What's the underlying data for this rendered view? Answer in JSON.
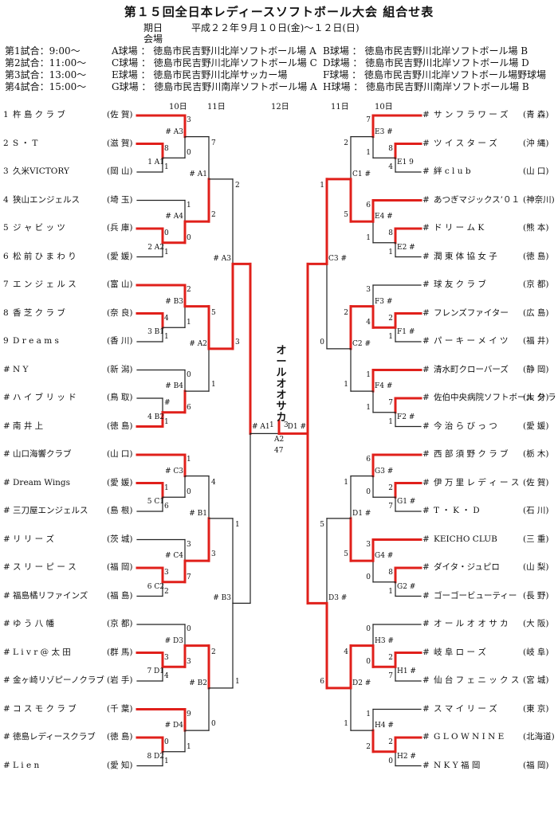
{
  "title": "第１５回全日本レディースソフトボール大会 組合せ表",
  "period_label": "期日",
  "period_value": "平成２２年９月１０日(金)～１２日(日)",
  "venue_label": "会場",
  "schedule": [
    {
      "time": "第1試合：9:00～",
      "left": "A球場 ： 徳島市民吉野川北岸ソフトボール場 A",
      "right": "B球場 ： 徳島市民吉野川北岸ソフトボール場 B"
    },
    {
      "time": "第2試合：11:00～",
      "left": "C球場 ： 徳島市民吉野川北岸ソフトボール場 C",
      "right": "D球場 ： 徳島市民吉野川北岸ソフトボール場 D"
    },
    {
      "time": "第3試合：13:00～",
      "left": "E球場 ： 徳島市民吉野川北岸サッカー場",
      "right": "F球場 ： 徳島市民吉野川北岸ソフトボール場野球場"
    },
    {
      "time": "第4試合：15:00～",
      "left": "G球場 ： 徳島市民吉野川南岸ソフトボール場 A",
      "right": "H球場 ： 徳島市民吉野川南岸ソフトボール場 B"
    }
  ],
  "days": {
    "l10": "10日",
    "l11": "11日",
    "c12": "12日",
    "r11": "11日",
    "r10": "10日"
  },
  "left_teams": [
    {
      "no": "1",
      "name": "杵 島 ク ラ ブ",
      "pref": "(佐 賀)"
    },
    {
      "no": "2",
      "name": "S ・ T",
      "pref": "(滋 賀)"
    },
    {
      "no": "3",
      "name": "久米VICTORY",
      "pref": "(岡 山)"
    },
    {
      "no": "4",
      "name": "狭山エンジェルス",
      "pref": "(埼 玉)"
    },
    {
      "no": "5",
      "name": "ジ ャ ビ ッ ツ",
      "pref": "(兵 庫)"
    },
    {
      "no": "6",
      "name": "松 前 ひ ま わ り",
      "pref": "(愛 媛)"
    },
    {
      "no": "7",
      "name": "エ ン ジ ェ ル ス",
      "pref": "(富 山)"
    },
    {
      "no": "8",
      "name": "香 芝 ク ラ ブ",
      "pref": "(奈 良)"
    },
    {
      "no": "9",
      "name": "D r e a m s",
      "pref": "(香 川)"
    },
    {
      "no": "#",
      "name": "N Y",
      "pref": "(新 潟)"
    },
    {
      "no": "#",
      "name": "ハ イ ブ リ ッ ド",
      "pref": "(鳥 取)"
    },
    {
      "no": "#",
      "name": "南 井 上",
      "pref": "(徳 島)"
    },
    {
      "no": "#",
      "name": "山口海響クラブ",
      "pref": "(山 口)"
    },
    {
      "no": "#",
      "name": "Dream Wings",
      "pref": "(愛 媛)"
    },
    {
      "no": "#",
      "name": "三刀屋エンジェルス",
      "pref": "(島 根)"
    },
    {
      "no": "#",
      "name": "リ リ ー ズ",
      "pref": "(茨 城)"
    },
    {
      "no": "#",
      "name": "ス リ ー ピ ー ス",
      "pref": "(福 岡)"
    },
    {
      "no": "#",
      "name": "福島橘リファインズ",
      "pref": "(福 島)"
    },
    {
      "no": "#",
      "name": "ゆ う 八 幡",
      "pref": "(京 都)"
    },
    {
      "no": "#",
      "name": "L i v r @ 太 田",
      "pref": "(群 馬)"
    },
    {
      "no": "#",
      "name": "金ヶ崎リゾピーノクラブ",
      "pref": "(岩 手)"
    },
    {
      "no": "#",
      "name": "コ ス モ ク ラ ブ",
      "pref": "(千 葉)"
    },
    {
      "no": "#",
      "name": "徳島レディースクラブ",
      "pref": "(徳 島)"
    },
    {
      "no": "#",
      "name": "L i e n",
      "pref": "(愛 知)"
    }
  ],
  "right_teams": [
    {
      "no": "#",
      "name": "サ ン フ ラ ワ ー ズ",
      "pref": "(青 森)"
    },
    {
      "no": "#",
      "name": "ツ イ ス タ ー ズ",
      "pref": "(沖 縄)"
    },
    {
      "no": "#",
      "name": "絆 c l u b",
      "pref": "(山 口)"
    },
    {
      "no": "#",
      "name": "あつぎマジックス’０１",
      "pref": "(神奈川)"
    },
    {
      "no": "#",
      "name": "ド リ ー ム K",
      "pref": "(熊 本)"
    },
    {
      "no": "#",
      "name": "潤 東 体 協 女 子",
      "pref": "(徳 島)"
    },
    {
      "no": "#",
      "name": "球 友 ク ラ ブ",
      "pref": "(京 都)"
    },
    {
      "no": "#",
      "name": "フレンズファイター",
      "pref": "(広 島)"
    },
    {
      "no": "#",
      "name": "パ ー キ ー メ イ ツ",
      "pref": "(福 井)"
    },
    {
      "no": "#",
      "name": "清水町クローバーズ",
      "pref": "(静 岡)"
    },
    {
      "no": "#",
      "name": "佐伯中央病院ソフトボール ク ラ ブ",
      "pref": "(大 分)"
    },
    {
      "no": "#",
      "name": "今 治 ら び っ つ",
      "pref": "(愛 媛)"
    },
    {
      "no": "#",
      "name": "西 部 須 野 ク ラ ブ",
      "pref": "(栃 木)"
    },
    {
      "no": "#",
      "name": "伊 万 里 レ デ ィ ー ス",
      "pref": "(佐 賀)"
    },
    {
      "no": "#",
      "name": "T ・ K ・ D",
      "pref": "(石 川)"
    },
    {
      "no": "#",
      "name": "KEICHO CLUB",
      "pref": "(三 重)"
    },
    {
      "no": "#",
      "name": "ダイタ・ジュピロ",
      "pref": "(山 梨)"
    },
    {
      "no": "#",
      "name": "ゴーゴービューティー",
      "pref": "(長 野)"
    },
    {
      "no": "#",
      "name": "オ ー ル オ オ サ カ",
      "pref": "(大 阪)"
    },
    {
      "no": "#",
      "name": "岐 阜 ロ ー ズ",
      "pref": "(岐 阜)"
    },
    {
      "no": "#",
      "name": "仙 台 フ ェ ニ ッ ク ス",
      "pref": "(宮 城)"
    },
    {
      "no": "#",
      "name": "ス マ イ リ ー ズ",
      "pref": "(東 京)"
    },
    {
      "no": "#",
      "name": "G L O W N I N E",
      "pref": "(北海道)"
    },
    {
      "no": "#",
      "name": "N K Y 福 岡",
      "pref": "(福 岡)"
    }
  ],
  "champion": "オールオオサカ",
  "final": {
    "code": "A2",
    "left_score": "1",
    "right_score": "3",
    "left_label": "# A1",
    "right_label": "D1 #",
    "extra": "47"
  },
  "left_groups": [
    {
      "r1": "# A3",
      "r1_a": "3",
      "r1_b": "0",
      "r0": "1 A1",
      "r0_a": "8",
      "r0_b": "1",
      "r0_c": "3",
      "w_top": true,
      "sf": "# A1"
    },
    {
      "r1": "# A4",
      "r1_a": "1",
      "r1_b": "0",
      "r0": "2 A2",
      "r0_a": "0",
      "r0_b": "1",
      "r0_c": "1",
      "w_top": false
    },
    {
      "r1": "# B3",
      "r1_a": "2",
      "r1_b": "1",
      "r0": "3 B1",
      "r0_a": "4",
      "r0_b": "1",
      "r0_c": "1",
      "w_top": true
    },
    {
      "r1": "# B4",
      "r1_a": "0",
      "r1_b": "6",
      "r0": "4 B2",
      "r0_a": "#",
      "r0_b": "1",
      "r0_c": "0",
      "w_top": false
    },
    {
      "r1": "# C3",
      "r1_a": "1",
      "r1_b": "0",
      "r0": "5 C1",
      "r0_a": "1",
      "r0_b": "6",
      "r0_c": "0",
      "w_top": true
    },
    {
      "r1": "# C4",
      "r1_a": "3",
      "r1_b": "7",
      "r0": "6 C2",
      "r0_a": "3",
      "r0_b": "2",
      "r0_c": "0",
      "w_top": false
    },
    {
      "r1": "# D3",
      "r1_a": "0",
      "r1_b": "3",
      "r0": "7 D1",
      "r0_a": "3",
      "r0_b": "4",
      "r0_c": "0",
      "w_top": false
    },
    {
      "r1": "# D4",
      "r1_a": "9",
      "r1_b": "1",
      "r0": "8 D2",
      "r0_a": "0",
      "r0_b": "1",
      "r0_c": "0",
      "w_top": true
    }
  ],
  "left_qf": [
    {
      "label": "# A1",
      "a": "7",
      "b": "2"
    },
    {
      "label": "# A2",
      "a": "5",
      "b": "1"
    },
    {
      "label": "# B1",
      "a": "4",
      "b": "3"
    },
    {
      "label": "# B2",
      "a": "2",
      "b": "0"
    }
  ],
  "left_sf": [
    {
      "label": "# A3",
      "a": "2",
      "b": "3"
    },
    {
      "label": "# B3",
      "a": "1",
      "b": "1"
    }
  ],
  "right_groups": [
    {
      "r1": "E3 #",
      "r1_a": "7",
      "r1_b": "1",
      "r0": "E1 9",
      "r0_a": "8",
      "r0_b": "4",
      "r0_c": "",
      "w_top": true
    },
    {
      "r1": "E4 #",
      "r1_a": "6",
      "r1_b": "1",
      "r0": "E2 #",
      "r0_a": "8",
      "r0_b": "1",
      "r0_c": "",
      "w_top": true
    },
    {
      "r1": "F3 #",
      "r1_a": "3",
      "r1_b": "4",
      "r0": "F1 #",
      "r0_a": "2",
      "r0_b": "1",
      "r0_c": "",
      "w_top": false
    },
    {
      "r1": "F4 #",
      "r1_a": "1",
      "r1_b": "1",
      "r0": "F2 #",
      "r0_a": "7",
      "r0_b": "1",
      "r0_c": "",
      "w_top": true
    },
    {
      "r1": "G3 #",
      "r1_a": "6",
      "r1_b": "0",
      "r0": "G1 #",
      "r0_a": "2",
      "r0_b": "7",
      "r0_c": "",
      "w_top": true
    },
    {
      "r1": "G4 #",
      "r1_a": "3",
      "r1_b": "0",
      "r0": "G2 #",
      "r0_a": "8",
      "r0_b": "1",
      "r0_c": "",
      "w_top": true
    },
    {
      "r1": "H3 #",
      "r1_a": "0",
      "r1_b": "0",
      "r0": "H1 #",
      "r0_a": "2",
      "r0_b": "7",
      "r0_c": "",
      "w_top": false
    },
    {
      "r1": "H4 #",
      "r1_a": "1",
      "r1_b": "2",
      "r0": "H2 #",
      "r0_a": "2",
      "r0_b": "0",
      "r0_c": "",
      "w_top": false
    }
  ],
  "right_qf": [
    {
      "label": "C1 #",
      "a": "2",
      "b": "5"
    },
    {
      "label": "C2 #",
      "a": "2",
      "b": "1"
    },
    {
      "label": "D1 #",
      "a": "1",
      "b": "5"
    },
    {
      "label": "D2 #",
      "a": "4",
      "b": "1"
    }
  ],
  "right_sf": [
    {
      "label": "C3 #",
      "a": "1",
      "b": "0"
    },
    {
      "label": "D3 #",
      "a": "5",
      "b": "6"
    }
  ]
}
